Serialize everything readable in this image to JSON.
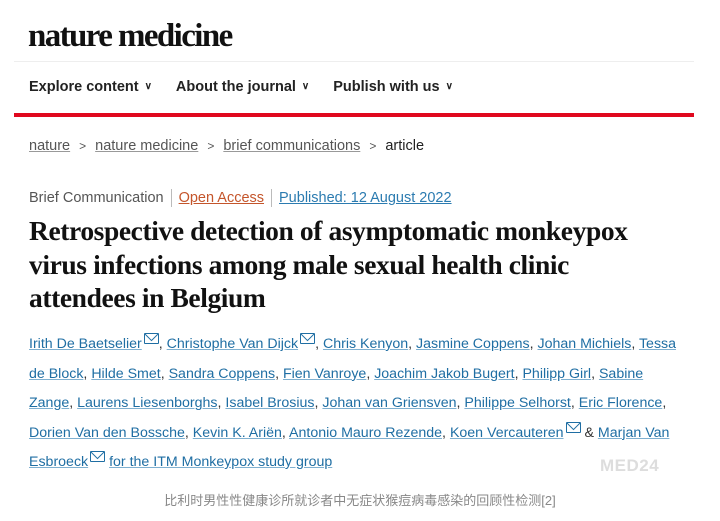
{
  "header": {
    "logo": "nature medicine"
  },
  "nav": {
    "items": [
      {
        "label": "Explore content"
      },
      {
        "label": "About the journal"
      },
      {
        "label": "Publish with us"
      }
    ]
  },
  "breadcrumb": {
    "items": [
      "nature",
      "nature medicine",
      "brief communications"
    ],
    "current": "article"
  },
  "article": {
    "type": "Brief Communication",
    "access": "Open Access",
    "published": "Published: 12 August 2022",
    "title": "Retrospective detection of asymptomatic monkeypox virus infections among male sexual health clinic attendees in Belgium",
    "authors": [
      {
        "name": "Irith De Baetselier",
        "email": true,
        "sep": ", "
      },
      {
        "name": "Christophe Van Dijck",
        "email": true,
        "sep": ", "
      },
      {
        "name": "Chris Kenyon",
        "sep": ", "
      },
      {
        "name": "Jasmine Coppens",
        "sep": ", "
      },
      {
        "name": "Johan Michiels",
        "sep": ", "
      },
      {
        "name": "Tessa de Block",
        "sep": ", "
      },
      {
        "name": "Hilde Smet",
        "sep": ", "
      },
      {
        "name": "Sandra Coppens",
        "sep": ", "
      },
      {
        "name": "Fien Vanroye",
        "sep": ", "
      },
      {
        "name": "Joachim Jakob Bugert",
        "sep": ", "
      },
      {
        "name": "Philipp Girl",
        "sep": ", "
      },
      {
        "name": "Sabine Zange",
        "sep": ", "
      },
      {
        "name": "Laurens Liesenborghs",
        "sep": ", "
      },
      {
        "name": "Isabel Brosius",
        "sep": ", "
      },
      {
        "name": "Johan van Griensven",
        "sep": ", "
      },
      {
        "name": "Philippe Selhorst",
        "sep": ", "
      },
      {
        "name": "Eric Florence",
        "sep": ", "
      },
      {
        "name": "Dorien Van den Bossche",
        "sep": ", "
      },
      {
        "name": "Kevin K. Ariën",
        "sep": ", "
      },
      {
        "name": "Antonio Mauro Rezende",
        "sep": ", "
      },
      {
        "name": "Koen Vercauteren",
        "email": true,
        "sep": " & "
      },
      {
        "name": "Marjan Van Esbroeck",
        "email": true,
        "sep": " "
      },
      {
        "name": "for the ITM Monkeypox study group",
        "sep": ""
      }
    ]
  },
  "watermark": "MED24",
  "caption": "比利时男性性健康诊所就诊者中无症状猴痘病毒感染的回顾性检测[2]"
}
